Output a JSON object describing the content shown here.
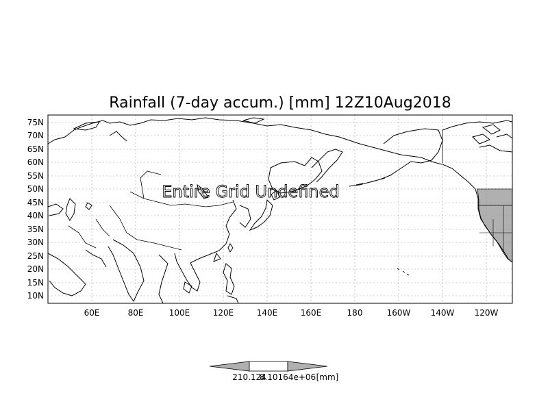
{
  "title": "Rainfall (7-day accum.) [mm] 12Z10Aug2018",
  "map_message": "Entire Grid Undefined",
  "lat_labels": [
    "75N",
    "70N",
    "65N",
    "60N",
    "55N",
    "50N",
    "45N",
    "40N",
    "35N",
    "30N",
    "25N",
    "20N",
    "15N",
    "10N"
  ],
  "lon_labels": [
    "60E",
    "80E",
    "100E",
    "120E",
    "140E",
    "160E",
    "180",
    "160W",
    "140W",
    "120W"
  ],
  "colorbar": {
    "label_left": "210.124",
    "label_mid": "8.10164e+06",
    "label_unit": "[mm]"
  },
  "colors": {
    "land_fill": "#b0b0b0",
    "coastline": "#000000",
    "grid": "#999999"
  }
}
